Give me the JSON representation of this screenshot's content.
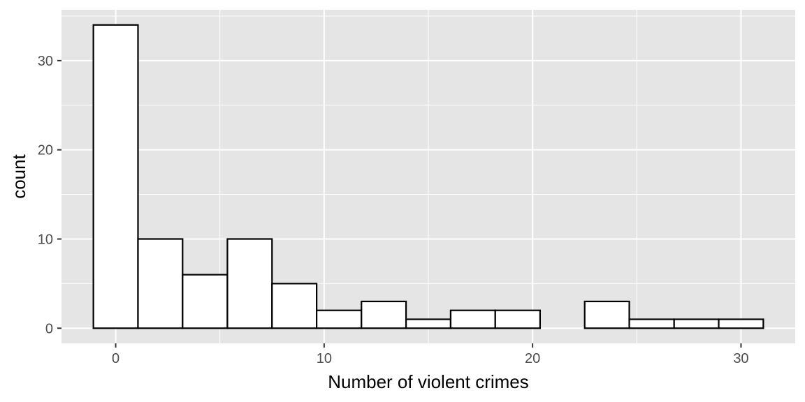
{
  "chart_data": {
    "type": "bar",
    "title": "",
    "xlabel": "Number of violent crimes",
    "ylabel": "count",
    "xlim": [
      -2.6,
      32.6
    ],
    "ylim": [
      -1.7,
      35.7
    ],
    "x_ticks": [
      0,
      10,
      20,
      30
    ],
    "y_ticks": [
      0,
      10,
      20,
      30
    ],
    "grid": true,
    "bins": [
      {
        "x0": -1.07,
        "x1": 1.07,
        "count": 34
      },
      {
        "x0": 1.07,
        "x1": 3.21,
        "count": 10
      },
      {
        "x0": 3.21,
        "x1": 5.36,
        "count": 6
      },
      {
        "x0": 5.36,
        "x1": 7.5,
        "count": 10
      },
      {
        "x0": 7.5,
        "x1": 9.64,
        "count": 5
      },
      {
        "x0": 9.64,
        "x1": 11.79,
        "count": 2
      },
      {
        "x0": 11.79,
        "x1": 13.93,
        "count": 3
      },
      {
        "x0": 13.93,
        "x1": 16.07,
        "count": 1
      },
      {
        "x0": 16.07,
        "x1": 18.21,
        "count": 2
      },
      {
        "x0": 18.21,
        "x1": 20.36,
        "count": 2
      },
      {
        "x0": 20.36,
        "x1": 22.5,
        "count": 0
      },
      {
        "x0": 22.5,
        "x1": 24.64,
        "count": 3
      },
      {
        "x0": 24.64,
        "x1": 26.79,
        "count": 1
      },
      {
        "x0": 26.79,
        "x1": 28.93,
        "count": 1
      },
      {
        "x0": 28.93,
        "x1": 31.07,
        "count": 1
      }
    ],
    "colors": {
      "panel_background": "#e5e5e5",
      "grid_line": "#ffffff",
      "bar_fill": "#ffffff",
      "bar_stroke": "#000000",
      "tick_mark": "#333333"
    }
  }
}
